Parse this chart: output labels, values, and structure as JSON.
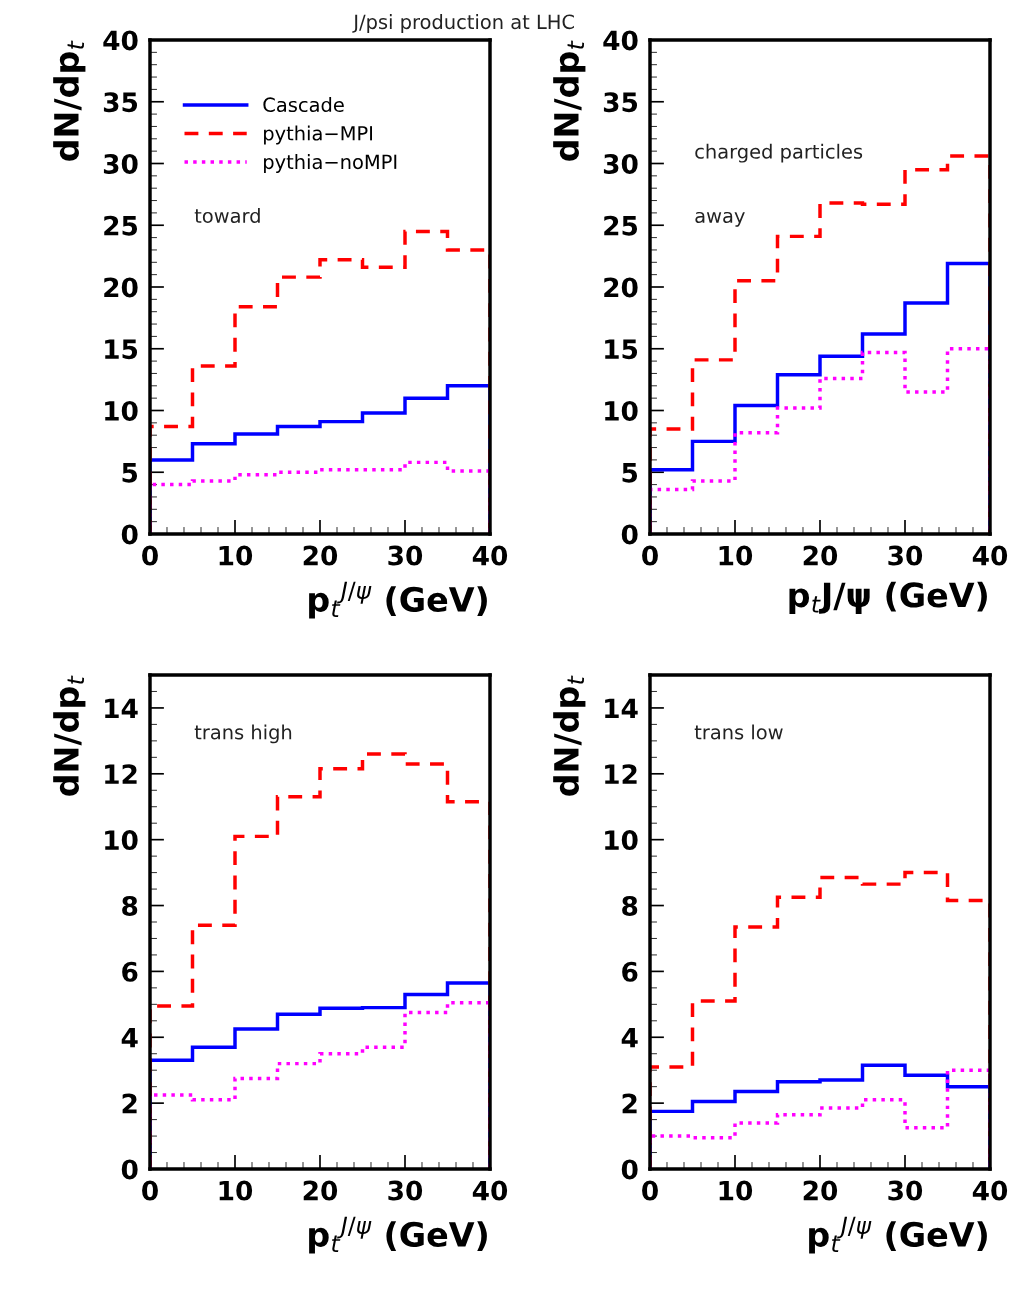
{
  "chart_data": [
    {
      "type": "histogram",
      "title": "J/psi production at LHC",
      "xlabel": "p$_{t}$$^{J/ψ}$ (GeV)",
      "ylabel": "dN/dp$_{t}$",
      "bins": [
        0,
        5,
        10,
        15,
        20,
        25,
        30,
        35,
        40
      ],
      "xlim": [
        0,
        40
      ],
      "xticks": [
        0,
        10,
        20,
        30,
        40
      ],
      "ylim": [
        0,
        40
      ],
      "yticks": [
        0,
        5,
        10,
        15,
        20,
        25,
        30,
        35,
        40
      ],
      "legend": "top left",
      "annotations": [
        "toward"
      ],
      "series": [
        {
          "name": "Cascade",
          "color": "#0000ff",
          "line_style": "solid",
          "values": [
            6.0,
            7.3,
            8.1,
            8.7,
            9.1,
            9.8,
            11.0,
            12.0
          ]
        },
        {
          "name": "pythia−MPI",
          "color": "#ff0000",
          "line_style": "dashed",
          "values": [
            8.7,
            13.6,
            18.4,
            20.8,
            22.2,
            21.6,
            24.5,
            23.0
          ]
        },
        {
          "name": "pythia−noMPI",
          "color": "#ff00ff",
          "line_style": "dotted",
          "values": [
            4.0,
            4.3,
            4.8,
            5.0,
            5.2,
            5.2,
            5.8,
            5.1
          ]
        }
      ]
    },
    {
      "type": "histogram",
      "xlabel": "p$_{t}$J/ψ (GeV)",
      "ylabel": "dN/dp$_{t}$",
      "bins": [
        0,
        5,
        10,
        15,
        20,
        25,
        30,
        35,
        40
      ],
      "xlim": [
        0,
        40
      ],
      "xticks": [
        0,
        10,
        20,
        30,
        40
      ],
      "ylim": [
        0,
        40
      ],
      "yticks": [
        0,
        5,
        10,
        15,
        20,
        25,
        30,
        35,
        40
      ],
      "annotations": [
        "charged particles",
        "away"
      ],
      "series": [
        {
          "color": "#0000ff",
          "line_style": "solid",
          "values": [
            5.2,
            7.5,
            10.4,
            12.9,
            14.4,
            16.2,
            18.7,
            21.9
          ]
        },
        {
          "color": "#ff0000",
          "line_style": "dashed",
          "values": [
            8.5,
            14.1,
            20.5,
            24.1,
            26.8,
            26.7,
            29.5,
            30.6
          ]
        },
        {
          "color": "#ff00ff",
          "line_style": "dotted",
          "values": [
            3.6,
            4.3,
            8.2,
            10.2,
            12.6,
            14.7,
            11.5,
            15.0
          ]
        }
      ]
    },
    {
      "type": "histogram",
      "xlabel": "p$_{t}$$^{J/ψ}$ (GeV)",
      "ylabel": "dN/dp$_{t}$",
      "bins": [
        0,
        5,
        10,
        15,
        20,
        25,
        30,
        35,
        40
      ],
      "xlim": [
        0,
        40
      ],
      "xticks": [
        0,
        10,
        20,
        30,
        40
      ],
      "ylim": [
        0,
        15
      ],
      "yticks": [
        0,
        2,
        4,
        6,
        8,
        10,
        12,
        14
      ],
      "annotations": [
        "trans high"
      ],
      "series": [
        {
          "color": "#0000ff",
          "line_style": "solid",
          "values": [
            3.3,
            3.7,
            4.25,
            4.7,
            4.88,
            4.9,
            5.3,
            5.65
          ]
        },
        {
          "color": "#ff0000",
          "line_style": "dashed",
          "values": [
            4.95,
            7.4,
            10.1,
            11.3,
            12.15,
            12.6,
            12.3,
            11.15
          ]
        },
        {
          "color": "#ff00ff",
          "line_style": "dotted",
          "values": [
            2.25,
            2.1,
            2.75,
            3.2,
            3.5,
            3.7,
            4.75,
            5.05
          ]
        }
      ]
    },
    {
      "type": "histogram",
      "xlabel": "p$_{t}$$^{J/ψ}$ (GeV)",
      "ylabel": "dN/dp$_{t}$",
      "bins": [
        0,
        5,
        10,
        15,
        20,
        25,
        30,
        35,
        40
      ],
      "xlim": [
        0,
        40
      ],
      "xticks": [
        0,
        10,
        20,
        30,
        40
      ],
      "ylim": [
        0,
        15
      ],
      "yticks": [
        0,
        2,
        4,
        6,
        8,
        10,
        12,
        14
      ],
      "annotations": [
        "trans low"
      ],
      "series": [
        {
          "color": "#0000ff",
          "line_style": "solid",
          "values": [
            1.75,
            2.05,
            2.35,
            2.65,
            2.7,
            3.15,
            2.85,
            2.5
          ]
        },
        {
          "color": "#ff0000",
          "line_style": "dashed",
          "values": [
            3.1,
            5.1,
            7.35,
            8.25,
            8.85,
            8.65,
            9.0,
            8.15
          ]
        },
        {
          "color": "#ff00ff",
          "line_style": "dotted",
          "values": [
            1.0,
            0.95,
            1.4,
            1.65,
            1.85,
            2.1,
            1.25,
            3.0
          ]
        }
      ]
    }
  ]
}
